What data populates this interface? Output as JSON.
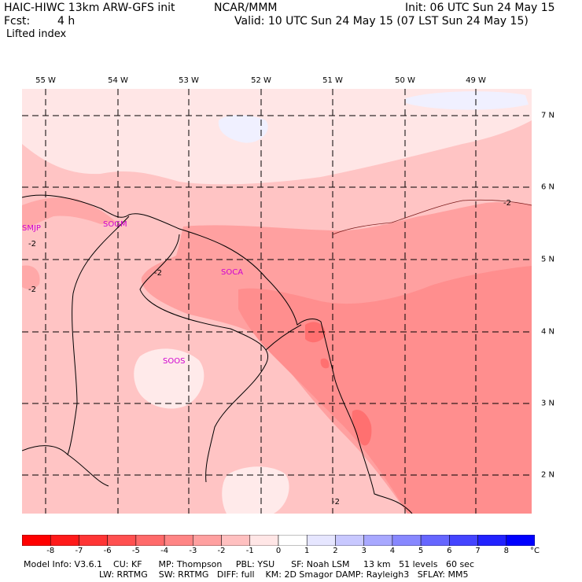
{
  "header": {
    "title_left": "HAIC-HIWC 13km ARW-GFS init",
    "org": "NCAR/MMM",
    "init": "Init: 06 UTC Sun 24 May 15",
    "fcst_label": "Fcst:",
    "fcst_value": "4 h",
    "valid": "Valid: 10 UTC Sun 24 May 15 (07 LST Sun 24 May 15)",
    "field": "Lifted index"
  },
  "map": {
    "lon_labels": [
      "55 W",
      "54 W",
      "53 W",
      "52 W",
      "51 W",
      "50 W",
      "49 W"
    ],
    "lat_labels": [
      "7 N",
      "6 N",
      "5 N",
      "4 N",
      "3 N",
      "2 N"
    ],
    "stations": [
      "SMJP",
      "SOGM",
      "SOCA",
      "SOOS"
    ],
    "contour_label": "-2"
  },
  "colorbar": {
    "ticks": [
      "-8",
      "-7",
      "-6",
      "-5",
      "-4",
      "-3",
      "-2",
      "-1",
      "0",
      "1",
      "2",
      "3",
      "4",
      "5",
      "6",
      "7",
      "8"
    ],
    "unit": "°C",
    "colors": [
      "#ff0000",
      "#ff1a1a",
      "#ff3535",
      "#ff5050",
      "#ff6a6a",
      "#ff8585",
      "#ffa0a0",
      "#ffc0c0",
      "#ffe6e6",
      "#ffffff",
      "#e6e6ff",
      "#c8c8ff",
      "#a8a8ff",
      "#8888ff",
      "#6666ff",
      "#4444ff",
      "#2222ff",
      "#0000ff"
    ]
  },
  "footer": {
    "line1": "Model Info: V3.6.1    CU: KF      MP: Thompson     PBL: YSU      SF: Noah LSM     13 km   51 levels   60 sec",
    "line2": "LW: RRTMG    SW: RRTMG   DIFF: full    KM: 2D Smagor DAMP: Rayleigh3   SFLAY: MM5"
  }
}
